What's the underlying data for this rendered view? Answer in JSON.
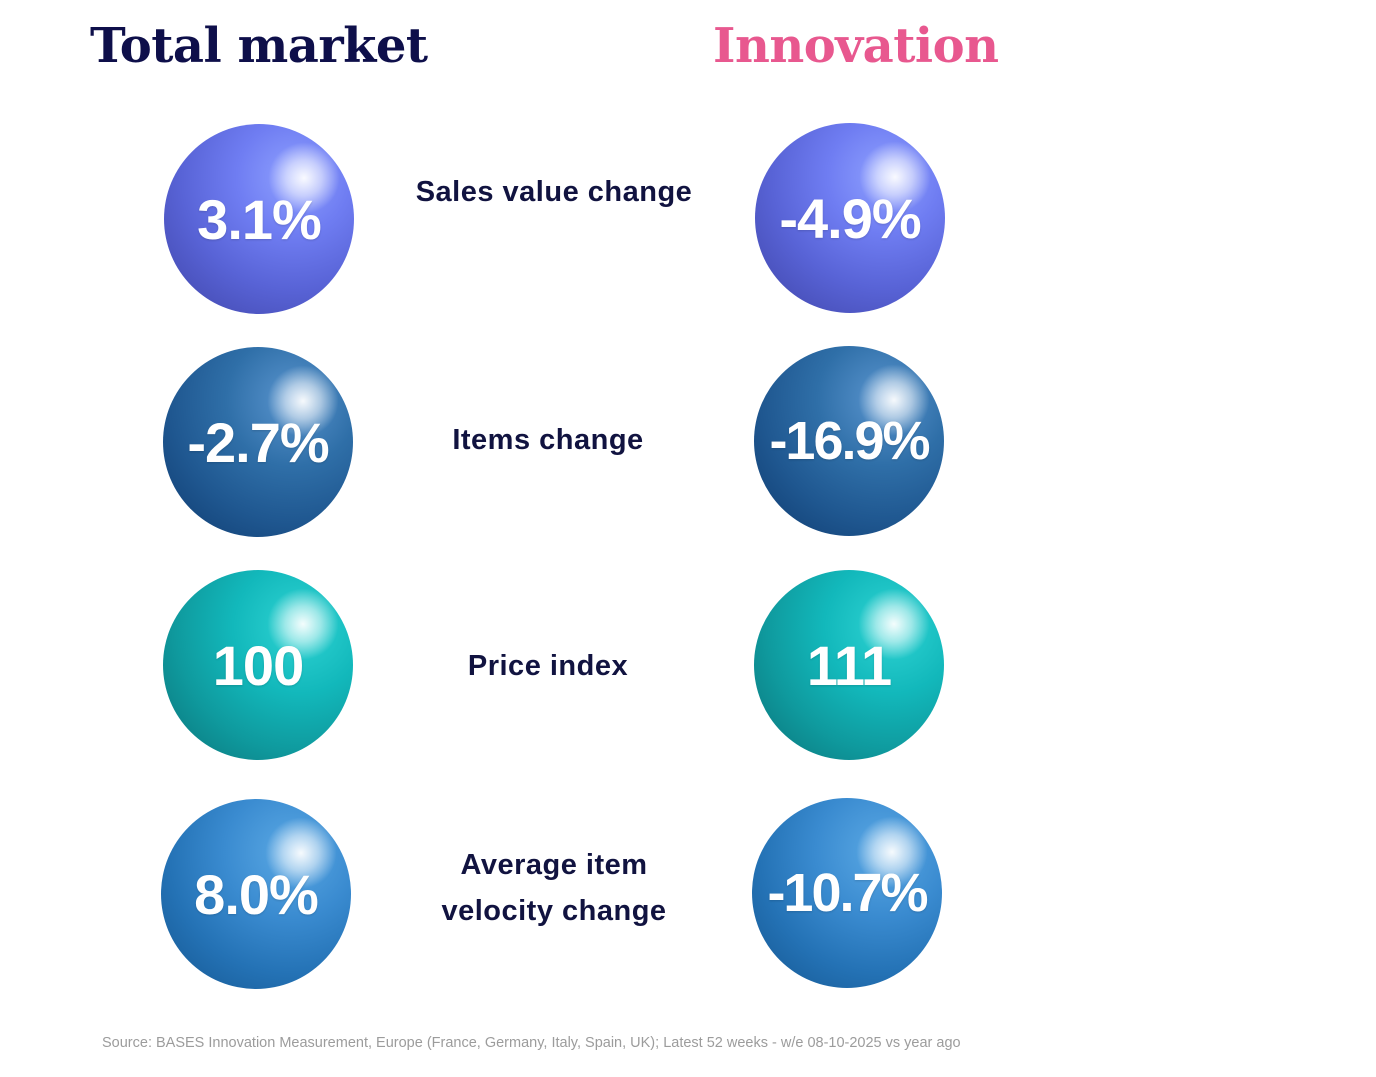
{
  "headers": {
    "total_market": "Total market",
    "innovation": "Innovation"
  },
  "colors": {
    "total_market_title": "#0e0f4a",
    "innovation_title": "#e8588f",
    "label_text": "#111340",
    "source_text": "#9c9c9c"
  },
  "metrics": [
    {
      "label": "Sales value change",
      "total_market": "3.1%",
      "innovation": "-4.9%"
    },
    {
      "label": "Items change",
      "total_market": "-2.7%",
      "innovation": "-16.9%"
    },
    {
      "label": "Price index",
      "total_market": "100",
      "innovation": "111"
    },
    {
      "label": "Average item velocity change",
      "total_market": "8.0%",
      "innovation": "-10.7%"
    }
  ],
  "source": "Source:  BASES Innovation Measurement, Europe (France, Germany, Italy, Spain, UK); Latest 52 weeks - w/e 08-10-2025 vs year ago"
}
